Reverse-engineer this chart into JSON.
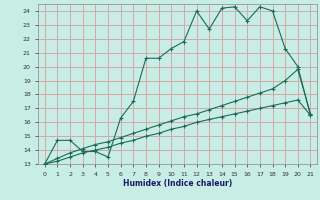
{
  "bg_color": "#c8ede4",
  "grid_color": "#d4a8a8",
  "line_color": "#1a6b5a",
  "xlabel": "Humidex (Indice chaleur)",
  "xlim": [
    -0.5,
    21.5
  ],
  "ylim": [
    13,
    24.5
  ],
  "xticks": [
    0,
    1,
    2,
    3,
    4,
    5,
    6,
    7,
    8,
    9,
    10,
    11,
    12,
    13,
    14,
    15,
    16,
    17,
    18,
    19,
    20,
    21
  ],
  "yticks": [
    13,
    14,
    15,
    16,
    17,
    18,
    19,
    20,
    21,
    22,
    23,
    24
  ],
  "line1_x": [
    0,
    1,
    2,
    3,
    4,
    5,
    6,
    7,
    8,
    9,
    10,
    11,
    12,
    13,
    14,
    15,
    16,
    17,
    18,
    19,
    20,
    21
  ],
  "line1_y": [
    13,
    14.7,
    14.7,
    13.9,
    13.9,
    13.5,
    16.3,
    17.5,
    20.6,
    20.6,
    21.3,
    21.8,
    24.0,
    22.7,
    24.2,
    24.3,
    23.3,
    24.3,
    24.0,
    21.3,
    20.0,
    16.5
  ],
  "line2_x": [
    0,
    1,
    2,
    3,
    4,
    5,
    6,
    7,
    8,
    9,
    10,
    11,
    12,
    13,
    14,
    15,
    16,
    17,
    18,
    19,
    20,
    21
  ],
  "line2_y": [
    13.0,
    13.4,
    13.8,
    14.1,
    14.4,
    14.6,
    14.9,
    15.2,
    15.5,
    15.8,
    16.1,
    16.4,
    16.6,
    16.9,
    17.2,
    17.5,
    17.8,
    18.1,
    18.4,
    19.0,
    19.8,
    16.6
  ],
  "line3_x": [
    0,
    1,
    2,
    3,
    4,
    5,
    6,
    7,
    8,
    9,
    10,
    11,
    12,
    13,
    14,
    15,
    16,
    17,
    18,
    19,
    20,
    21
  ],
  "line3_y": [
    13.0,
    13.2,
    13.5,
    13.8,
    14.0,
    14.2,
    14.5,
    14.7,
    15.0,
    15.2,
    15.5,
    15.7,
    16.0,
    16.2,
    16.4,
    16.6,
    16.8,
    17.0,
    17.2,
    17.4,
    17.6,
    16.5
  ],
  "marker": "+"
}
